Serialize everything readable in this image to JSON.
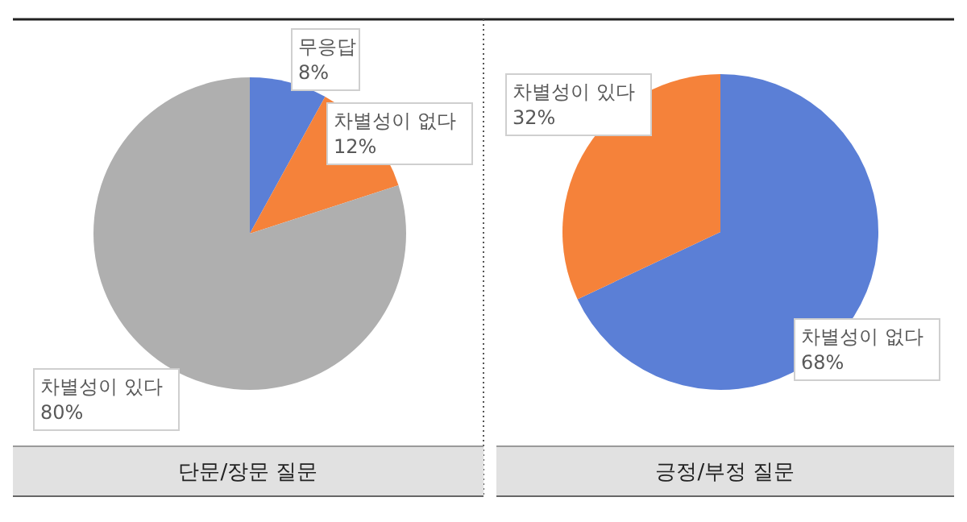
{
  "chart_data": [
    {
      "type": "pie",
      "title": "단문/장문 질문",
      "categories": [
        "무응답",
        "차별성이 없다",
        "차별성이 있다"
      ],
      "values": [
        8,
        12,
        80
      ],
      "value_labels": [
        "8%",
        "12%",
        "80%"
      ],
      "colors": [
        "#5b7fd6",
        "#f5823a",
        "#afafaf"
      ]
    },
    {
      "type": "pie",
      "title": "긍정/부정 질문",
      "categories": [
        "차별성이 없다",
        "차별성이 있다"
      ],
      "values": [
        68,
        32
      ],
      "value_labels": [
        "68%",
        "32%"
      ],
      "colors": [
        "#5b7fd6",
        "#f5823a"
      ]
    }
  ]
}
